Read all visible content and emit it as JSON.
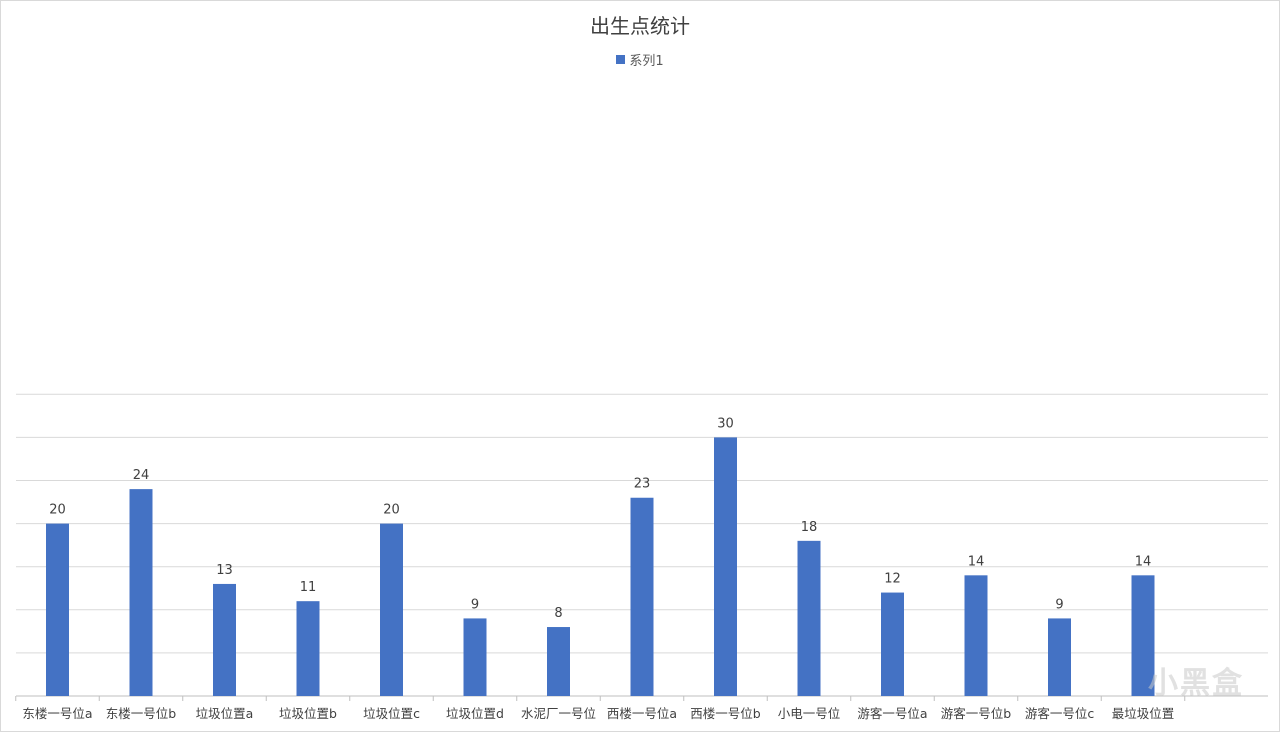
{
  "chart_data": {
    "type": "bar",
    "title": "出生点统计",
    "categories": [
      "东楼一号位a",
      "东楼一号位b",
      "垃圾位置a",
      "垃圾位置b",
      "垃圾位置c",
      "垃圾位置d",
      "水泥厂一号位",
      "西楼一号位a",
      "西楼一号位b",
      "小电一号位",
      "游客一号位a",
      "游客一号位b",
      "游客一号位c",
      "最垃圾位置"
    ],
    "series": [
      {
        "name": "系列1",
        "values": [
          20,
          24,
          13,
          11,
          20,
          9,
          8,
          23,
          30,
          18,
          12,
          14,
          9,
          14
        ]
      }
    ],
    "ylim": [
      0,
      35
    ],
    "grid": true,
    "legend_position": "top",
    "color": "#4472C4",
    "show_data_labels": true
  },
  "watermark": "小黑盒"
}
